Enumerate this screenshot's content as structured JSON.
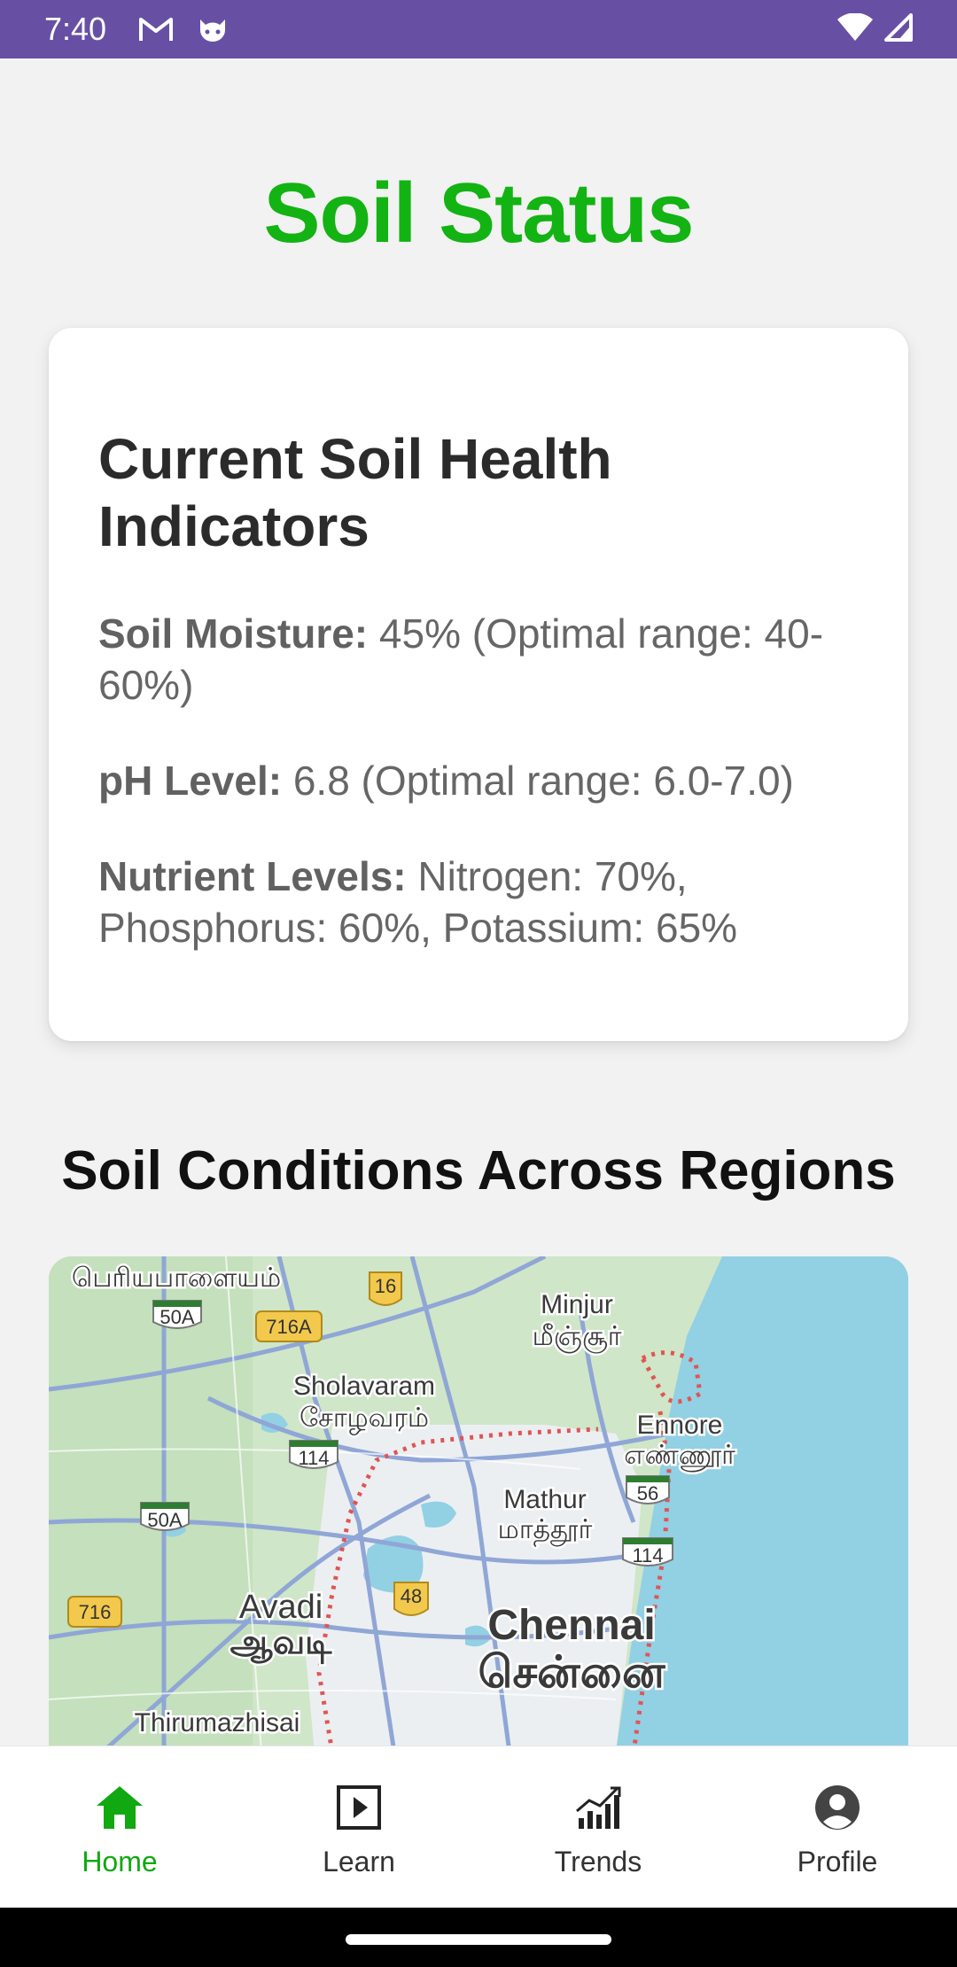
{
  "status_bar": {
    "time": "7:40",
    "icons_left": [
      "gmail-icon",
      "cat-app-icon"
    ],
    "icons_right": [
      "wifi-icon",
      "signal-icon"
    ],
    "background": "#6750a4"
  },
  "page": {
    "title": "Soil Status",
    "title_color": "#13b313"
  },
  "card": {
    "title": "Current Soil Health Indicators",
    "indicators": [
      {
        "label": "Soil Moisture:",
        "value": " 45% (Optimal range: 40-60%)"
      },
      {
        "label": "pH Level:",
        "value": " 6.8 (Optimal range: 6.0-7.0)"
      },
      {
        "label": "Nutrient Levels:",
        "value": " Nitrogen: 70%, Phosphorus: 60%, Potassium: 65%"
      }
    ]
  },
  "regions": {
    "heading": "Soil Conditions Across Regions",
    "map": {
      "places": [
        {
          "en": "Minjur",
          "ta": "மீஞ்சூர்"
        },
        {
          "en": "Sholavaram",
          "ta": "சோழவரம்"
        },
        {
          "en": "Ennore",
          "ta": "எண்ணூர்"
        },
        {
          "en": "Mathur",
          "ta": "மாத்தூர்"
        },
        {
          "en": "Avadi",
          "ta": "ஆவடி"
        },
        {
          "en": "Chennai",
          "ta": "சென்னை"
        },
        {
          "en": "Thirumazhisai",
          "ta": ""
        },
        {
          "en": "",
          "ta": "பெரியபாளையம்"
        }
      ],
      "road_shields": [
        "16",
        "50A",
        "716A",
        "114",
        "50A",
        "56",
        "114",
        "716",
        "48"
      ]
    }
  },
  "bottom_nav": {
    "items": [
      {
        "label": "Home",
        "icon": "home-icon",
        "active": true
      },
      {
        "label": "Learn",
        "icon": "play-square-icon",
        "active": false
      },
      {
        "label": "Trends",
        "icon": "trend-chart-icon",
        "active": false
      },
      {
        "label": "Profile",
        "icon": "profile-icon",
        "active": false
      }
    ],
    "active_color": "#11a811"
  }
}
